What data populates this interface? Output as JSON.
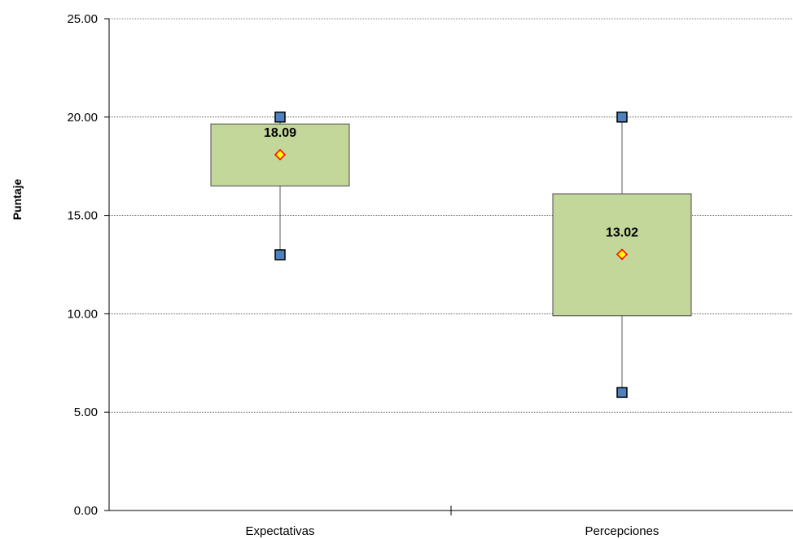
{
  "chart_data": {
    "type": "boxplot",
    "title": "",
    "xlabel": "",
    "ylabel": "Puntaje",
    "ylim": [
      0,
      25
    ],
    "yticks": [
      "0.00",
      "5.00",
      "10.00",
      "15.00",
      "20.00",
      "25.00"
    ],
    "grid": true,
    "categories": [
      "Expectativas",
      "Percepciones"
    ],
    "boxes": [
      {
        "category": "Expectativas",
        "min": 13,
        "q1": 16.5,
        "q3": 19.65,
        "max": 20,
        "mean": 18.09,
        "mean_label": "18.09"
      },
      {
        "category": "Percepciones",
        "min": 6,
        "q1": 9.9,
        "q3": 16.1,
        "max": 20,
        "mean": 13.02,
        "mean_label": "13.02"
      }
    ],
    "colors": {
      "box_fill": "#c4d79b",
      "box_stroke": "#4a4a4a",
      "whisker_marker": "#4f81bd",
      "mean_marker_fill": "#ffff00",
      "mean_marker_stroke": "#ff0000",
      "gridline": "#000000"
    }
  }
}
